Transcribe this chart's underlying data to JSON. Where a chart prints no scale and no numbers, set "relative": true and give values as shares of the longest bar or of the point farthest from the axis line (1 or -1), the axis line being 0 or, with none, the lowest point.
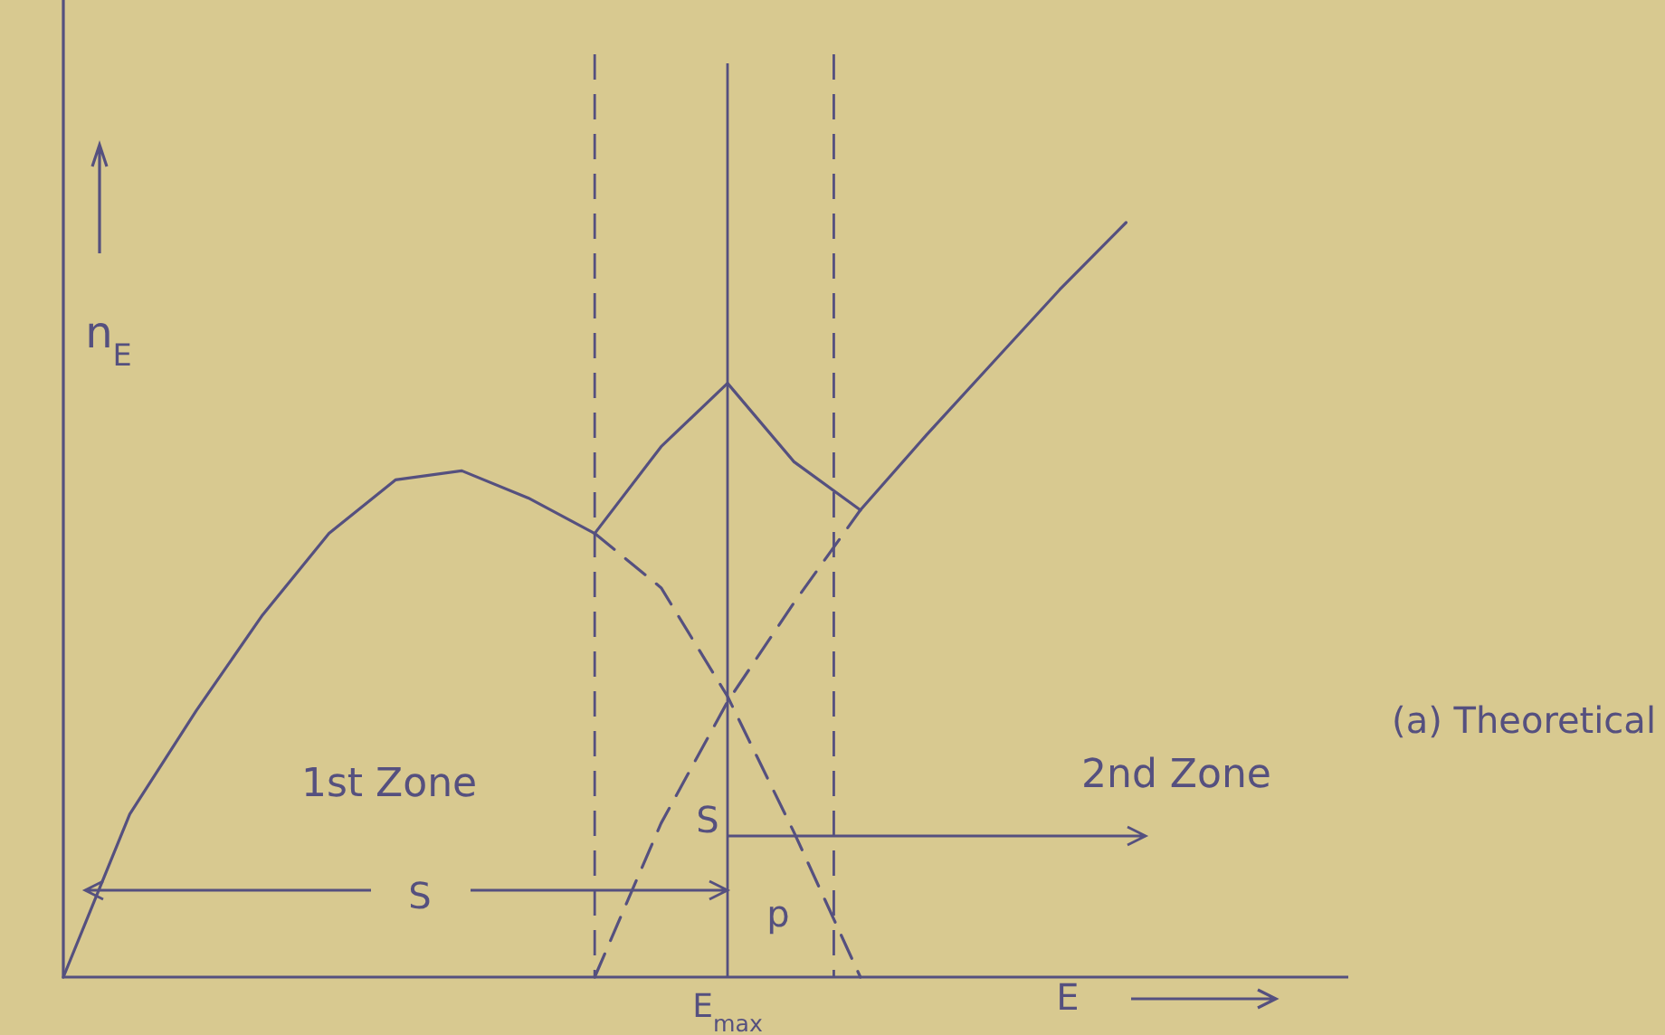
{
  "chart_data": {
    "type": "line",
    "relative": true,
    "title": "(a) Theoretical",
    "xlabel": "E",
    "ylabel": "n$_{E}$",
    "categories": [
      null,
      null,
      null,
      null,
      null,
      null,
      null,
      null,
      null,
      null,
      null,
      null,
      null,
      null,
      null,
      null,
      null,
      null,
      null,
      null
    ],
    "series": [
      {
        "color": "#55507f",
        "line_style": "solid",
        "values": [
          0,
          0.216,
          0.353,
          0.48,
          0.588,
          0.659,
          0.671,
          0.635,
          0.588,
          null,
          null,
          null,
          null,
          null,
          null,
          null,
          null,
          null,
          null,
          null
        ]
      },
      {
        "color": "#55507f",
        "line_style": "dashed",
        "values": [
          null,
          null,
          null,
          null,
          null,
          null,
          null,
          null,
          0.588,
          0.516,
          0.372,
          0.192,
          0,
          null,
          null,
          null,
          null,
          null,
          null,
          null
        ]
      },
      {
        "color": "#55507f",
        "line_style": "dashed",
        "values": [
          null,
          null,
          null,
          null,
          null,
          null,
          null,
          null,
          0,
          0.204,
          0.365,
          0.496,
          0.619,
          null,
          null,
          null,
          null,
          null,
          null,
          null
        ]
      },
      {
        "color": "#55507f",
        "line_style": "solid",
        "values": [
          null,
          null,
          null,
          null,
          null,
          null,
          null,
          null,
          null,
          null,
          null,
          null,
          0.619,
          0.719,
          0.815,
          0.911,
          1,
          null,
          null,
          null
        ]
      },
      {
        "color": "#55507f",
        "line_style": "solid",
        "values": [
          null,
          null,
          null,
          null,
          null,
          null,
          null,
          null,
          0.588,
          0.703,
          0.787,
          0.683,
          0.619,
          null,
          null,
          null,
          null,
          null,
          null,
          null
        ]
      }
    ],
    "annotations": [
      "1st Zone",
      "2nd Zone",
      "S",
      "S",
      "p",
      "E$_{max}$"
    ]
  }
}
